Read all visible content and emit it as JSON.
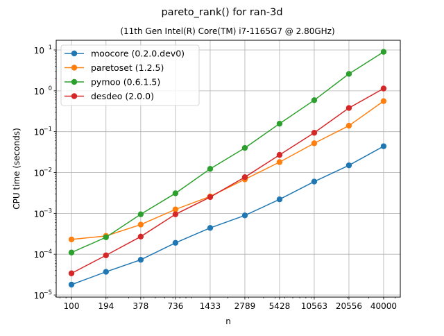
{
  "chart_data": {
    "type": "line",
    "title": "pareto_rank() for ran-3d",
    "subtitle": "(11th Gen Intel(R) Core(TM) i7-1165G7 @ 2.80GHz)",
    "xlabel": "n",
    "ylabel": "CPU time (seconds)",
    "xscale": "log",
    "yscale": "log",
    "x": [
      100,
      194,
      378,
      736,
      1433,
      2789,
      5428,
      10563,
      20556,
      40000
    ],
    "xtick_labels": [
      "100",
      "194",
      "378",
      "736",
      "1433",
      "2789",
      "5428",
      "10563",
      "20556",
      "40000"
    ],
    "ytick_exponents": [
      "-5",
      "-4",
      "-3",
      "-2",
      "-1",
      "0",
      "1"
    ],
    "xlim": [
      74.6,
      55100
    ],
    "ylim": [
      8.9e-06,
      17.3
    ],
    "grid": true,
    "legend_position": "top-left",
    "series": [
      {
        "name": "moocore (0.2.0.dev0)",
        "color": "#1f77b4",
        "values": [
          1.8e-05,
          3.7e-05,
          7.3e-05,
          0.00019,
          0.00044,
          0.00089,
          0.0022,
          0.006,
          0.015,
          0.044
        ]
      },
      {
        "name": "paretoset (1.2.5)",
        "color": "#ff7f0e",
        "values": [
          0.00023,
          0.00028,
          0.00053,
          0.00125,
          0.0026,
          0.0068,
          0.018,
          0.052,
          0.14,
          0.56
        ]
      },
      {
        "name": "pymoo (0.6.1.5)",
        "color": "#2ca02c",
        "values": [
          0.00011,
          0.00026,
          0.00095,
          0.0031,
          0.0123,
          0.04,
          0.157,
          0.59,
          2.6,
          9.0
        ]
      },
      {
        "name": "desdeo (2.0.0)",
        "color": "#d62728",
        "values": [
          3.4e-05,
          9.4e-05,
          0.00027,
          0.00095,
          0.0025,
          0.0077,
          0.027,
          0.094,
          0.38,
          1.14
        ]
      }
    ]
  }
}
